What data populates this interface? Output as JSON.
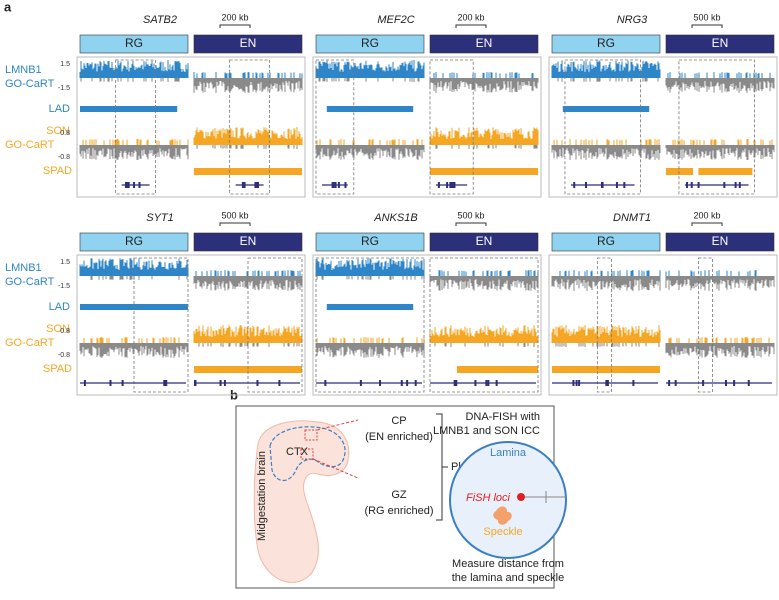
{
  "panel_a": {
    "label": "a",
    "rows": [
      {
        "labels": {
          "lmnb1": "LMNB1",
          "gocart_top": "GO-CaRT",
          "lmnb1_max": "1.5",
          "lmnb1_min": "-1.5",
          "lad": "LAD",
          "son": "SON",
          "gocart_bottom": "GO-CaRT",
          "son_max": "0.8",
          "son_min": "-0.8",
          "spad": "SPAD"
        },
        "genes": [
          {
            "name": "SATB2",
            "scale": "200 kb",
            "rg": "RG",
            "en": "EN"
          },
          {
            "name": "MEF2C",
            "scale": "200 kb",
            "rg": "RG",
            "en": "EN"
          },
          {
            "name": "NRG3",
            "scale": "500 kb",
            "rg": "RG",
            "en": "EN"
          }
        ]
      },
      {
        "labels": {
          "lmnb1": "LMNB1",
          "gocart_top": "GO-CaRT",
          "lmnb1_max": "1.5",
          "lmnb1_min": "-1.5",
          "lad": "LAD",
          "son": "SON",
          "gocart_bottom": "GO-CaRT",
          "son_max": "0.8",
          "son_min": "-0.8",
          "spad": "SPAD"
        },
        "genes": [
          {
            "name": "SYT1",
            "scale": "500 kb",
            "rg": "RG",
            "en": "EN"
          },
          {
            "name": "ANKS1B",
            "scale": "500 kb",
            "rg": "RG",
            "en": "EN"
          },
          {
            "name": "DNMT1",
            "scale": "200 kb",
            "rg": "RG",
            "en": "EN"
          }
        ]
      }
    ]
  },
  "panel_b": {
    "label": "b",
    "brain": "Midgestation brain",
    "ctx": "CTX",
    "cp": "CP",
    "cp_note": "(EN enriched)",
    "gz": "GZ",
    "gz_note": "(RG enriched)",
    "plate": "Plate",
    "fish_title_1": "DNA-FISH with",
    "fish_title_2": "LMNB1 and SON ICC",
    "lamina": "Lamina",
    "loci": "FiSH loci",
    "speckle": "Speckle",
    "measure_1": "Measure distance from",
    "measure_2": "the lamina and speckle"
  }
}
